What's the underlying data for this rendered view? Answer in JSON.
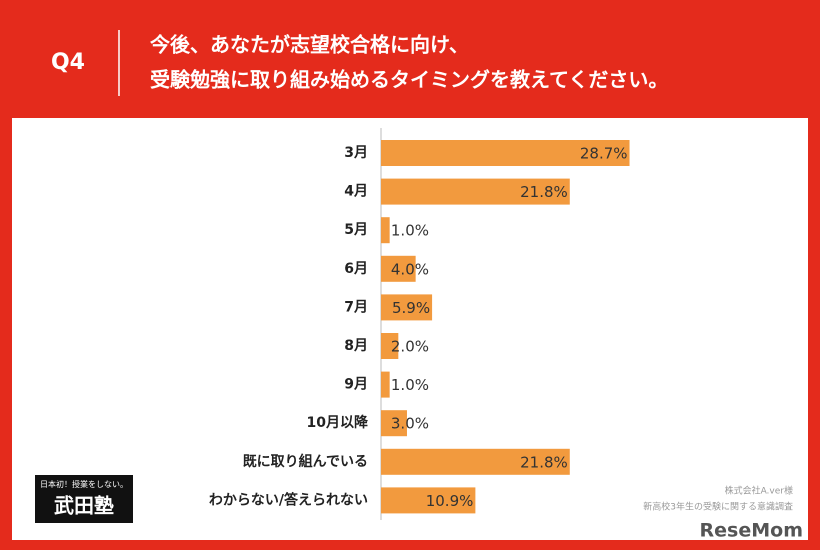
{
  "question_number": "Q4",
  "question": [
    "今後、あなたが志望校合格に向け、",
    "受験勉強に取り組み始めるタイミングを教えてください。"
  ],
  "chart_data": {
    "type": "bar",
    "orientation": "horizontal",
    "categories": [
      "3月",
      "4月",
      "5月",
      "6月",
      "7月",
      "8月",
      "9月",
      "10月以降",
      "既に取り組んでいる",
      "わからない/答えられない"
    ],
    "values": [
      28.7,
      21.8,
      1.0,
      4.0,
      5.9,
      2.0,
      1.0,
      3.0,
      21.8,
      10.9
    ],
    "value_labels": [
      "28.7%",
      "21.8%",
      "1.0%",
      "4.0%",
      "5.9%",
      "2.0%",
      "1.0%",
      "3.0%",
      "21.8%",
      "10.9%"
    ],
    "color": "#f29a3e",
    "xlim": [
      0,
      47
    ]
  },
  "logo": {
    "tagline": "日本初！授業をしない。",
    "name": "武田塾"
  },
  "source": [
    "株式会社A.ver様",
    "新高校3年生の受験に関する意識調査"
  ],
  "watermark": "ReseMom"
}
